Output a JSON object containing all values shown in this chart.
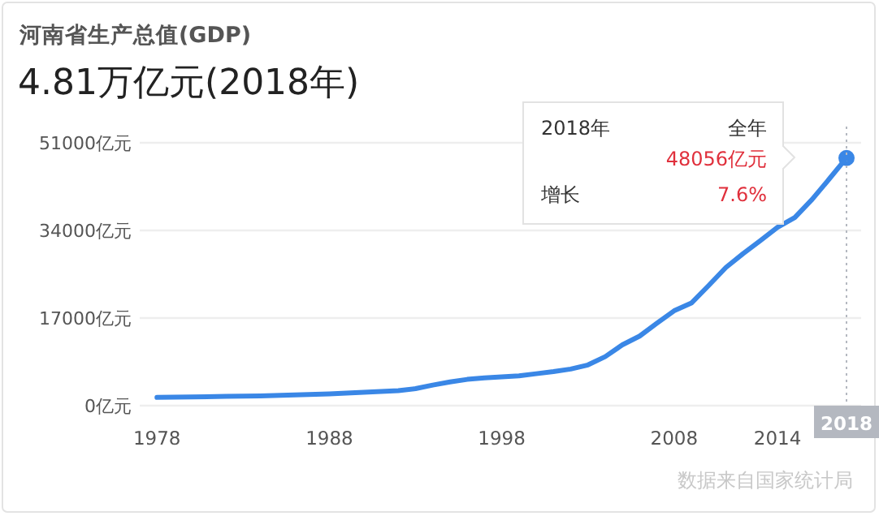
{
  "chart_data": {
    "type": "line",
    "title": "河南省生产总值(GDP)",
    "subtitle": "4.81万亿元(2018年)",
    "x": [
      1978,
      1980,
      1982,
      1984,
      1986,
      1988,
      1990,
      1992,
      1993,
      1994,
      1995,
      1996,
      1997,
      1998,
      1999,
      2000,
      2001,
      2002,
      2003,
      2004,
      2005,
      2006,
      2007,
      2008,
      2009,
      2010,
      2011,
      2012,
      2013,
      2014,
      2015,
      2016,
      2017,
      2018
    ],
    "series": [
      {
        "color": "#3a87e6",
        "values": [
          1600,
          1700,
          1800,
          1900,
          2100,
          2300,
          2600,
          2900,
          3300,
          4000,
          4600,
          5100,
          5400,
          5600,
          5800,
          6200,
          6600,
          7100,
          7900,
          9500,
          11800,
          13500,
          16000,
          18400,
          19900,
          23300,
          26800,
          29500,
          32000,
          34600,
          36500,
          40000,
          44000,
          48056
        ]
      }
    ],
    "xlim": [
      1977,
      2018
    ],
    "ylim": [
      0,
      51000
    ],
    "xticks": [
      1978,
      1988,
      1998,
      2008,
      2014
    ],
    "yticks": [
      {
        "value": 0,
        "label": "0亿元"
      },
      {
        "value": 17000,
        "label": "17000亿元"
      },
      {
        "value": 34000,
        "label": "34000亿元"
      },
      {
        "value": 51000,
        "label": "51000亿元"
      }
    ],
    "grid": "y",
    "marker": "none",
    "line_style": "solid",
    "ref_lines": [
      {
        "axis": "x",
        "value": 2018,
        "label": "2018",
        "color": "#b4b8c0",
        "line_style": "dotted"
      }
    ],
    "annotations": [
      "2018年",
      "全年",
      "48056亿元",
      "增长",
      "7.6%",
      "数据来自国家统计局"
    ]
  }
}
